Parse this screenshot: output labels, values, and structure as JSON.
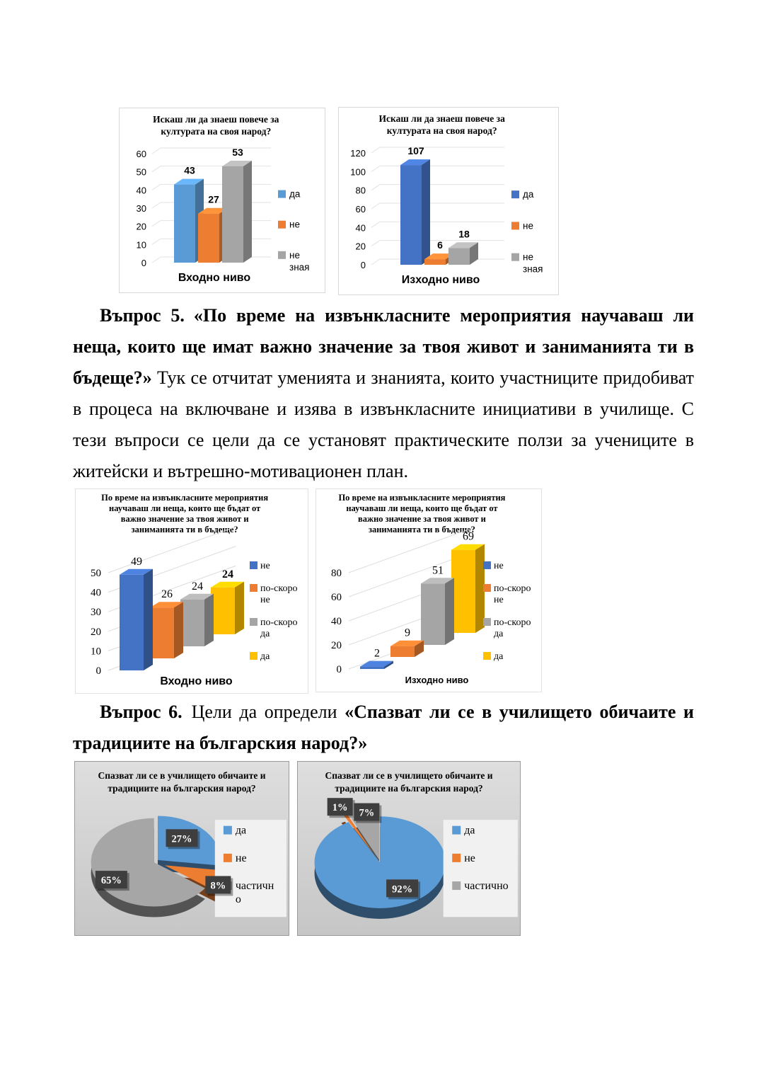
{
  "page": {
    "background": "#FFFFFF"
  },
  "document": {
    "question5": {
      "label": "Въпрос 5.",
      "quote": "«По време на извънкласните мероприятия научаваш ли неща, които ще имат важно значение за твоя живот и заниманията ти в бъдеще?»",
      "body": "Тук се отчитат уменията и знанията, които участниците придобиват в процеса на включване и изява в извънкласните инициативи в училище. С тези въпроси се цели да се установят практическите ползи за учениците в житейски и вътрешно-мотивационен план."
    },
    "question6": {
      "label": "Въпрос 6.",
      "lead": "Цели да определи",
      "quote": "«Спазват ли се в  училището обичаите и традициите на българския народ?»"
    }
  },
  "colors": {
    "blue_light": "#5B9BD5",
    "blue_dark": "#4472C4",
    "orange": "#ED7D31",
    "gray": "#A5A5A5",
    "yellow": "#FFC000",
    "label_box": "#3E3E3E",
    "label_text": "#FFFFFF",
    "legend_bg": "#F1F1F1"
  },
  "chart_data": [
    {
      "type": "bar",
      "variant": "3d-clustered",
      "title": "Искаш ли да знаеш повече за културата на своя народ?",
      "category": "Входно ниво",
      "ylim": [
        0,
        60
      ],
      "ystep": 10,
      "grid": true,
      "legend_position": "right",
      "series": [
        {
          "name": "да",
          "value": 43,
          "color": "#5B9BD5"
        },
        {
          "name": "не",
          "value": 27,
          "color": "#ED7D31"
        },
        {
          "name": "не зная",
          "value": 53,
          "color": "#A5A5A5"
        }
      ]
    },
    {
      "type": "bar",
      "variant": "3d-clustered",
      "title": "Искаш ли да знаеш повече за културата на своя народ?",
      "category": "Изходно ниво",
      "ylim": [
        0,
        120
      ],
      "ystep": 20,
      "grid": true,
      "legend_position": "right",
      "series": [
        {
          "name": "да",
          "value": 107,
          "color": "#4472C4"
        },
        {
          "name": "не",
          "value": 6,
          "color": "#ED7D31"
        },
        {
          "name": "не зная",
          "value": 18,
          "color": "#A5A5A5"
        }
      ]
    },
    {
      "type": "bar",
      "variant": "3d-depth",
      "title": "По време на извънкласните мероприятия научаваш ли неща, които ще бъдат от важно значение за твоя живот и заниманията ти в бъдеще?",
      "category": "Входно ниво",
      "ylim": [
        0,
        50
      ],
      "ystep": 10,
      "grid": true,
      "legend_position": "right",
      "series": [
        {
          "name": "не",
          "value": 49,
          "color": "#4472C4"
        },
        {
          "name": "по-скоро не",
          "value": 26,
          "color": "#ED7D31"
        },
        {
          "name": "по-скоро да",
          "value": 24,
          "color": "#A5A5A5"
        },
        {
          "name": "да",
          "value": 24,
          "color": "#FFC000",
          "label_bold": true
        }
      ]
    },
    {
      "type": "bar",
      "variant": "3d-depth",
      "title": "По време на извънкласните мероприятия научаваш ли неща, които ще бъдат от важно значение за твоя живот и заниманията ти в бъдеще?",
      "category": "Изходно ниво",
      "ylim": [
        0,
        80
      ],
      "ystep": 20,
      "grid": true,
      "legend_position": "right",
      "series": [
        {
          "name": "не",
          "value": 2,
          "color": "#4472C4"
        },
        {
          "name": "по-скоро не",
          "value": 9,
          "color": "#ED7D31"
        },
        {
          "name": "по-скоро да",
          "value": 51,
          "color": "#A5A5A5"
        },
        {
          "name": "да",
          "value": 69,
          "color": "#FFC000"
        }
      ]
    },
    {
      "type": "pie",
      "variant": "3d",
      "title": "Спазват ли се в  училището обичаите и традициите на българския народ?",
      "legend_position": "right",
      "slices": [
        {
          "name": "да",
          "pct": 27,
          "color": "#5B9BD5",
          "explode": 7
        },
        {
          "name": "не",
          "pct": 8,
          "color": "#ED7D31",
          "explode": 16
        },
        {
          "name": "частично",
          "pct": 65,
          "color": "#A6A6A6",
          "explode": 0
        }
      ]
    },
    {
      "type": "pie",
      "variant": "3d",
      "title": "Спазват ли се в училището обичаите и традициите на българския народ?",
      "legend_position": "right",
      "slices": [
        {
          "name": "да",
          "pct": 92,
          "color": "#5B9BD5",
          "explode": 0
        },
        {
          "name": "не",
          "pct": 1,
          "color": "#ED7D31",
          "explode": 22
        },
        {
          "name": "частично",
          "pct": 7,
          "color": "#A6A6A6",
          "explode": 5
        }
      ]
    }
  ]
}
